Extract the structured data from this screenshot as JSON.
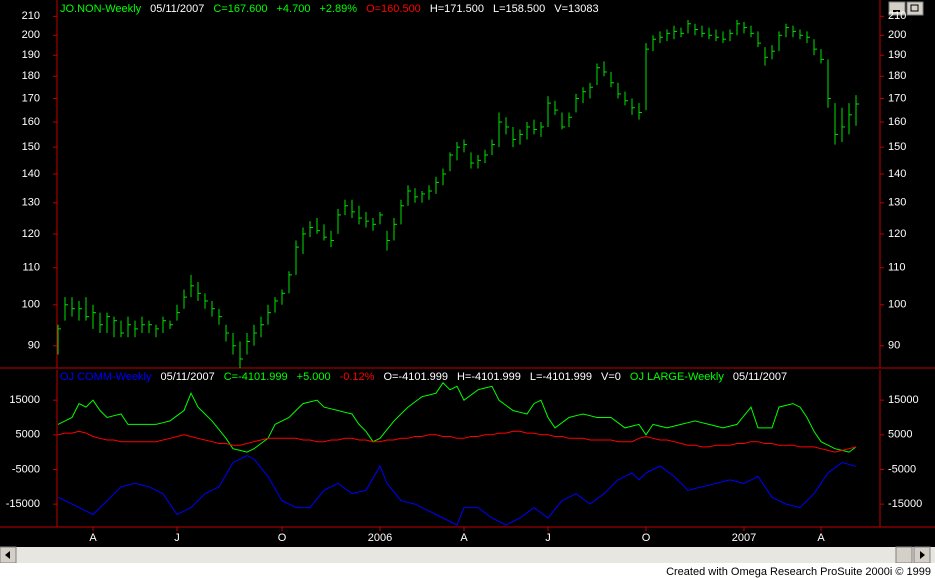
{
  "chart_data": [
    {
      "type": "ohlc",
      "log_scale": true,
      "color": "#00e000",
      "axis_color": "#c00000",
      "legend": [
        {
          "text": "JO.NON-Weekly",
          "color": "#00ff00"
        },
        {
          "text": "05/11/2007",
          "color": "#ffffff"
        },
        {
          "text": "C=167.600",
          "color": "#00ff00"
        },
        {
          "text": "+4.700",
          "color": "#00ff00"
        },
        {
          "text": "+2.89%",
          "color": "#00ff00"
        },
        {
          "text": "O=160.500",
          "color": "#ff0000"
        },
        {
          "text": "H=171.500",
          "color": "#ffffff"
        },
        {
          "text": "L=158.500",
          "color": "#ffffff"
        },
        {
          "text": "V=13083",
          "color": "#ffffff"
        }
      ],
      "ylim": [
        85,
        219
      ],
      "yticks": [
        90,
        100,
        110,
        120,
        130,
        140,
        150,
        160,
        170,
        180,
        190,
        200,
        210
      ],
      "high": [
        95,
        102,
        102,
        101,
        102,
        100,
        98,
        98,
        97,
        96,
        97,
        96,
        97,
        96,
        95,
        97,
        96,
        100,
        104,
        108,
        106,
        103,
        101,
        99,
        95,
        93,
        91,
        93,
        95,
        97,
        100,
        102,
        104,
        109,
        118,
        122,
        124,
        125,
        123,
        121,
        128,
        131,
        131,
        129,
        127,
        125,
        127,
        121,
        125,
        131,
        136,
        135,
        134,
        136,
        139,
        142,
        148,
        152,
        153,
        148,
        147,
        149,
        153,
        164,
        162,
        158,
        157,
        160,
        161,
        160,
        171,
        169,
        164,
        164,
        172,
        175,
        177,
        186,
        187,
        182,
        177,
        173,
        170,
        168,
        196,
        200,
        202,
        203,
        205,
        204,
        208,
        206,
        205,
        204,
        203,
        202,
        203,
        208,
        207,
        205,
        202,
        194,
        195,
        202,
        206,
        205,
        203,
        202,
        198,
        193,
        188,
        168,
        166,
        168,
        171.5
      ],
      "low": [
        88,
        96,
        97,
        96,
        96,
        94,
        93,
        93,
        92,
        92,
        92,
        92,
        93,
        93,
        92,
        93,
        94,
        96,
        99,
        102,
        101,
        99,
        97,
        95,
        91,
        88,
        85,
        88,
        90,
        92,
        95,
        98,
        100,
        103,
        108,
        114,
        119,
        120,
        118,
        116,
        120,
        126,
        125,
        123,
        122,
        121,
        123,
        115,
        118,
        123,
        129,
        130,
        130,
        131,
        133,
        136,
        141,
        145,
        148,
        142,
        142,
        144,
        147,
        150,
        155,
        150,
        151,
        153,
        155,
        154,
        158,
        163,
        157,
        158,
        164,
        168,
        170,
        176,
        180,
        175,
        170,
        167,
        163,
        161,
        165,
        192,
        196,
        197,
        198,
        199,
        201,
        200,
        199,
        198,
        197,
        196,
        197,
        200,
        201,
        199,
        194,
        185,
        188,
        192,
        199,
        199,
        198,
        196,
        190,
        186,
        166,
        151,
        152,
        155,
        158.5
      ],
      "close": [
        94,
        100,
        99,
        99,
        97,
        98,
        95,
        97,
        96,
        93,
        95,
        94,
        95,
        95,
        94,
        96,
        95,
        98,
        102,
        105,
        103,
        101,
        99,
        97,
        93,
        90,
        87,
        91,
        93,
        95,
        98,
        101,
        103,
        108,
        116,
        120,
        122,
        121,
        119,
        118,
        126,
        129,
        127,
        125,
        124,
        123,
        126,
        118,
        123,
        129,
        134,
        132,
        133,
        134,
        137,
        140,
        147,
        150,
        151,
        144,
        145,
        147,
        151,
        160,
        158,
        153,
        155,
        158,
        157,
        158,
        168,
        165,
        158,
        162,
        170,
        173,
        175,
        184,
        182,
        177,
        172,
        169,
        166,
        164,
        193,
        198,
        199,
        201,
        202,
        201,
        206,
        203,
        201,
        200,
        199,
        198,
        201,
        206,
        204,
        201,
        196,
        189,
        192,
        200,
        204,
        202,
        200,
        199,
        193,
        188,
        170,
        155,
        158,
        163,
        167.6
      ]
    },
    {
      "type": "line",
      "axis_color": "#c00000",
      "legend": [
        {
          "text": "OJ COMM-Weekly",
          "color": "#0000ff"
        },
        {
          "text": "05/11/2007",
          "color": "#ffffff"
        },
        {
          "text": "C=-4101.999",
          "color": "#00ff00"
        },
        {
          "text": "+5.000",
          "color": "#00ff00"
        },
        {
          "text": "-0.12%",
          "color": "#ff0000"
        },
        {
          "text": "O=-4101.999",
          "color": "#ffffff"
        },
        {
          "text": "H=-4101.999",
          "color": "#ffffff"
        },
        {
          "text": "L=-4101.999",
          "color": "#ffffff"
        },
        {
          "text": "V=0",
          "color": "#ffffff"
        },
        {
          "text": "OJ LARGE-Weekly",
          "color": "#00ff00"
        },
        {
          "text": "05/11/2007",
          "color": "#ffffff"
        }
      ],
      "categories": [
        null,
        null,
        null,
        null,
        null,
        "A",
        null,
        null,
        null,
        null,
        null,
        null,
        null,
        null,
        null,
        null,
        null,
        "J",
        null,
        null,
        null,
        null,
        null,
        null,
        null,
        null,
        null,
        null,
        null,
        null,
        null,
        null,
        "O",
        null,
        null,
        null,
        null,
        null,
        null,
        null,
        null,
        null,
        null,
        null,
        null,
        null,
        "2006",
        null,
        null,
        null,
        null,
        null,
        null,
        null,
        null,
        null,
        null,
        null,
        "A",
        null,
        null,
        null,
        null,
        null,
        null,
        null,
        null,
        null,
        null,
        null,
        "J",
        null,
        null,
        null,
        null,
        null,
        null,
        null,
        null,
        null,
        null,
        null,
        null,
        null,
        "O",
        null,
        null,
        null,
        null,
        null,
        null,
        null,
        null,
        null,
        null,
        null,
        null,
        null,
        "2007",
        null,
        null,
        null,
        null,
        null,
        null,
        null,
        null,
        null,
        null,
        "A",
        null,
        null,
        null,
        null,
        null
      ],
      "ylim": [
        -21600,
        23700
      ],
      "yticks": [
        15000,
        5000,
        -5000,
        -15000
      ],
      "series": [
        {
          "color": "#00ff00",
          "values": [
            8000,
            9000,
            10000,
            14000,
            13000,
            15000,
            12000,
            10000,
            10500,
            11000,
            8000,
            8000,
            8000,
            8000,
            8000,
            8500,
            9000,
            10500,
            12000,
            17000,
            13000,
            11000,
            9000,
            6500,
            4000,
            1000,
            500,
            0,
            1000,
            2500,
            4000,
            8000,
            9000,
            10000,
            12000,
            14000,
            14500,
            15000,
            13000,
            12500,
            12000,
            11500,
            11000,
            8000,
            6000,
            3000,
            4000,
            6500,
            9000,
            11000,
            13000,
            14500,
            16000,
            16500,
            17000,
            20000,
            18000,
            19000,
            15000,
            16500,
            18000,
            18500,
            19000,
            15000,
            13500,
            12000,
            11500,
            11000,
            14000,
            15000,
            10000,
            7000,
            8500,
            10000,
            10500,
            11000,
            10500,
            10000,
            10000,
            10000,
            8500,
            7000,
            7500,
            8000,
            5000,
            8000,
            7500,
            7000,
            7500,
            8000,
            8500,
            9000,
            8500,
            8000,
            7500,
            7000,
            7500,
            8000,
            10500,
            13000,
            7000,
            7000,
            7000,
            13000,
            13500,
            14000,
            13000,
            10000,
            6000,
            3000,
            2000,
            1000,
            500,
            0,
            1500
          ]
        },
        {
          "color": "#ff0000",
          "values": [
            5000,
            5500,
            5500,
            6000,
            5500,
            4500,
            4000,
            3500,
            3500,
            3000,
            3000,
            3000,
            3000,
            3000,
            3000,
            3500,
            4000,
            4500,
            5000,
            4500,
            4000,
            3500,
            3000,
            2500,
            2500,
            2000,
            2000,
            2500,
            3000,
            3500,
            4000,
            4000,
            4000,
            4000,
            4000,
            3500,
            3500,
            3000,
            3000,
            3500,
            3500,
            4000,
            4000,
            3500,
            3500,
            3000,
            3000,
            3500,
            3500,
            4000,
            4000,
            4500,
            4500,
            5000,
            5000,
            4500,
            4500,
            4000,
            4000,
            4500,
            4500,
            5000,
            5000,
            5500,
            5500,
            6000,
            6000,
            5500,
            5500,
            5000,
            5000,
            4500,
            4500,
            4000,
            4000,
            4000,
            3500,
            3500,
            3500,
            3500,
            3000,
            3000,
            3000,
            4000,
            4500,
            4000,
            3500,
            3500,
            3000,
            2500,
            2000,
            2000,
            1500,
            1500,
            2000,
            2000,
            2000,
            2500,
            2500,
            3000,
            3000,
            2500,
            2500,
            2000,
            2000,
            2000,
            1500,
            1500,
            1500,
            1000,
            500,
            0,
            500,
            1000,
            1500
          ]
        },
        {
          "color": "#0000ff",
          "values": [
            -13000,
            -14000,
            -15000,
            -16000,
            -17000,
            -18000,
            -16000,
            -14000,
            -12000,
            -10000,
            -9500,
            -9000,
            -9500,
            -10000,
            -11000,
            -12000,
            -15000,
            -18000,
            -17000,
            -16000,
            -14000,
            -12000,
            -11000,
            -10000,
            -6500,
            -3000,
            -2000,
            -1000,
            -2000,
            -4500,
            -7000,
            -10500,
            -14000,
            -15000,
            -16000,
            -16000,
            -16000,
            -13500,
            -11000,
            -10000,
            -9000,
            -10500,
            -12000,
            -11500,
            -11000,
            -7500,
            -4000,
            -9000,
            -11500,
            -14000,
            -14500,
            -15000,
            -16000,
            -17000,
            -18000,
            -19000,
            -20000,
            -21000,
            -16000,
            -16000,
            -16000,
            -17500,
            -19000,
            -20000,
            -21000,
            -20000,
            -19000,
            -17500,
            -16000,
            -17500,
            -19000,
            -16500,
            -14000,
            -13000,
            -12000,
            -13500,
            -15000,
            -13500,
            -12000,
            -10000,
            -8000,
            -7000,
            -6000,
            -8000,
            -6000,
            -5000,
            -4000,
            -5500,
            -7000,
            -9000,
            -11000,
            -10500,
            -10000,
            -9500,
            -9000,
            -8500,
            -8000,
            -8500,
            -9000,
            -8000,
            -7000,
            -10000,
            -13000,
            -14000,
            -15000,
            -15500,
            -16000,
            -14000,
            -12000,
            -9000,
            -6000,
            -4500,
            -3000,
            -3500,
            -4102
          ]
        }
      ]
    }
  ],
  "status": "Created with Omega Research ProSuite 2000i © 1999"
}
